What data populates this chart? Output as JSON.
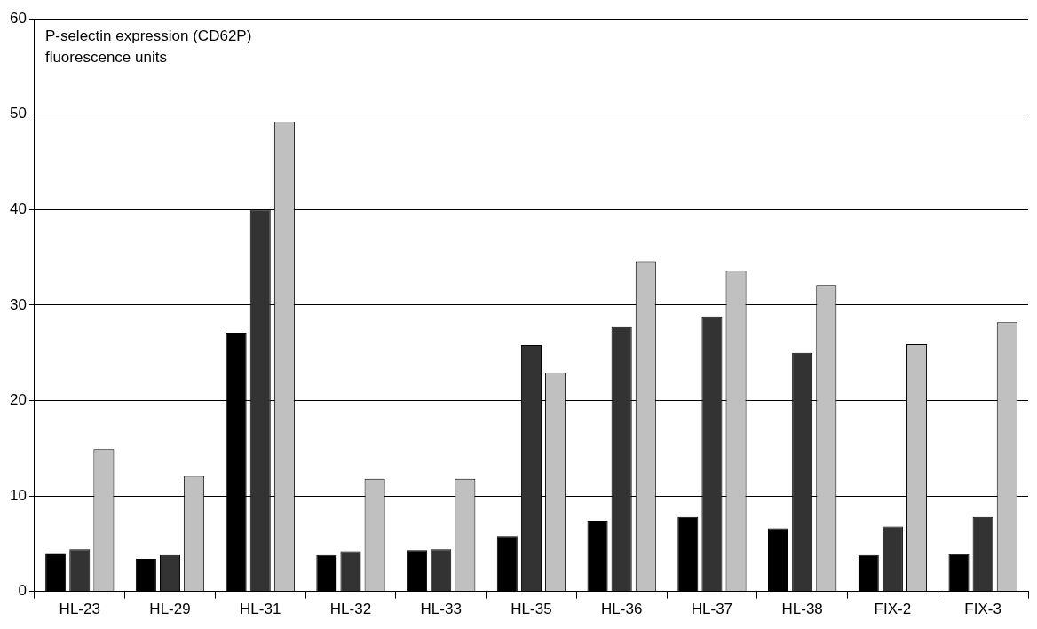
{
  "chart_data": {
    "type": "bar",
    "title": "P-selectin expression (CD62P)\nfluorescence units",
    "categories": [
      "HL-23",
      "HL-29",
      "HL-31",
      "HL-32",
      "HL-33",
      "HL-35",
      "HL-36",
      "HL-37",
      "HL-38",
      "FIX-2",
      "FIX-3"
    ],
    "series": [
      {
        "color": "#000000",
        "values": [
          4.0,
          3.4,
          27.1,
          3.8,
          4.3,
          5.8,
          7.4,
          7.8,
          6.6,
          3.8,
          3.9
        ]
      },
      {
        "color": "#333333",
        "values": [
          4.4,
          3.8,
          40.0,
          4.2,
          4.4,
          25.8,
          27.7,
          28.8,
          25.0,
          6.8,
          7.8
        ]
      },
      {
        "color": "#c0c0c0",
        "values": [
          14.9,
          12.1,
          49.2,
          11.8,
          11.8,
          22.9,
          34.6,
          33.6,
          32.1,
          25.9,
          28.2
        ]
      }
    ],
    "ylim": [
      0,
      60
    ],
    "yticks": [
      0,
      10,
      20,
      30,
      40,
      50,
      60
    ],
    "grid": "y",
    "legend": false
  }
}
